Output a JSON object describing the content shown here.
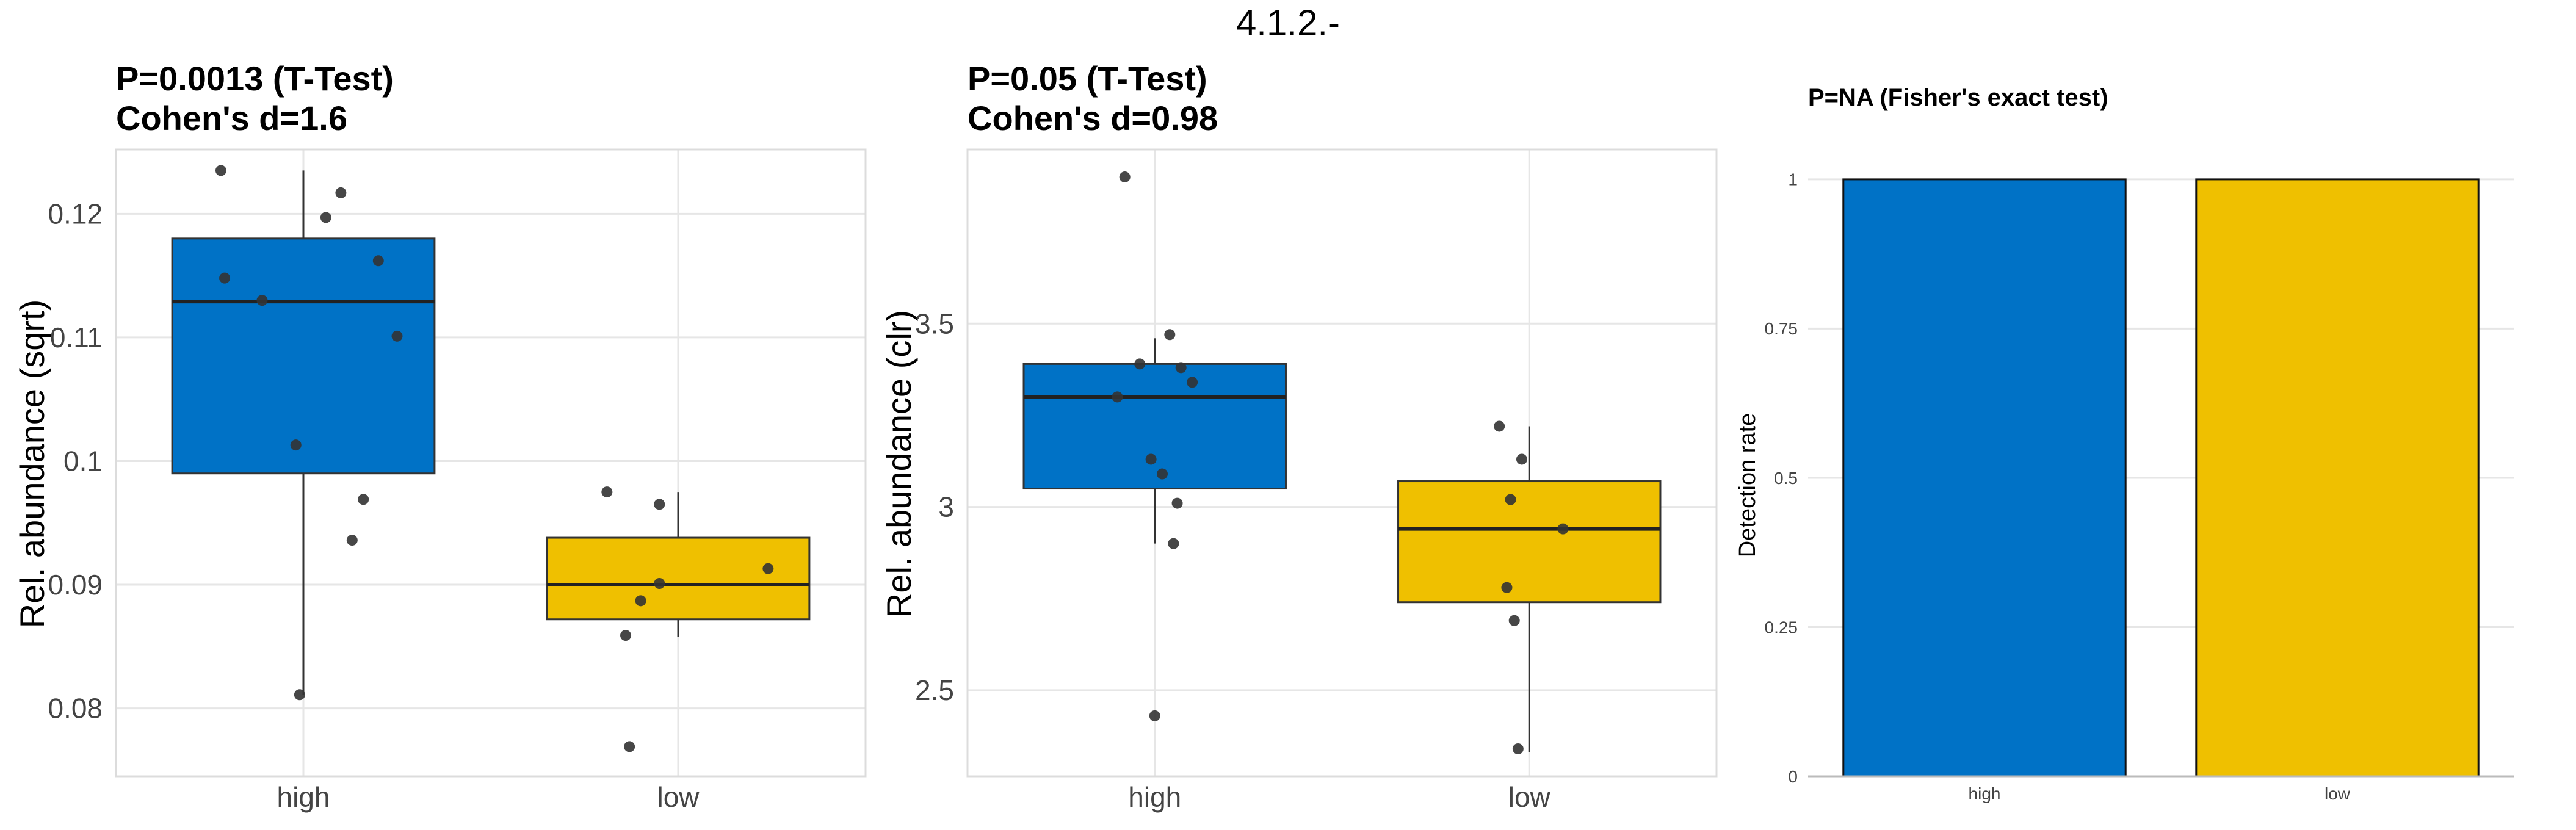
{
  "figure": {
    "title": "4.1.2.-"
  },
  "colors": {
    "high": "#0072C6",
    "low": "#EFC000",
    "point": "#333333",
    "grid": "#e6e6e6"
  },
  "chart_data": [
    {
      "type": "box",
      "title_line1": "P=0.0013 (T-Test)",
      "title_line2": "Cohen's d=1.6",
      "ylabel": "Rel. abundance (sqrt)",
      "xlabel": "",
      "categories": [
        "high",
        "low"
      ],
      "ylim": [
        0.0745,
        0.1252
      ],
      "yticks": [
        0.08,
        0.09,
        0.1,
        0.11,
        0.12
      ],
      "ytick_labels": [
        "0.08",
        "0.09",
        "0.1",
        "0.11",
        "0.12"
      ],
      "boxes": [
        {
          "group": "high",
          "q1": 0.099,
          "median": 0.1129,
          "q3": 0.118,
          "whisker_low": 0.0811,
          "whisker_high": 0.1235
        },
        {
          "group": "low",
          "q1": 0.0872,
          "median": 0.09,
          "q3": 0.0938,
          "whisker_low": 0.0858,
          "whisker_high": 0.0975
        }
      ],
      "points": [
        {
          "group": "high",
          "jitter": -0.22,
          "value": 0.1235
        },
        {
          "group": "high",
          "jitter": 0.1,
          "value": 0.1217
        },
        {
          "group": "high",
          "jitter": 0.06,
          "value": 0.1197
        },
        {
          "group": "high",
          "jitter": 0.2,
          "value": 0.1162
        },
        {
          "group": "high",
          "jitter": -0.21,
          "value": 0.1148
        },
        {
          "group": "high",
          "jitter": -0.11,
          "value": 0.113
        },
        {
          "group": "high",
          "jitter": 0.25,
          "value": 0.1101
        },
        {
          "group": "high",
          "jitter": -0.02,
          "value": 0.1013
        },
        {
          "group": "high",
          "jitter": 0.16,
          "value": 0.0969
        },
        {
          "group": "high",
          "jitter": 0.13,
          "value": 0.0936
        },
        {
          "group": "high",
          "jitter": -0.01,
          "value": 0.0811
        },
        {
          "group": "low",
          "jitter": -0.19,
          "value": 0.0975
        },
        {
          "group": "low",
          "jitter": -0.05,
          "value": 0.0965
        },
        {
          "group": "low",
          "jitter": 0.24,
          "value": 0.0913
        },
        {
          "group": "low",
          "jitter": -0.05,
          "value": 0.0901
        },
        {
          "group": "low",
          "jitter": -0.1,
          "value": 0.0887
        },
        {
          "group": "low",
          "jitter": -0.14,
          "value": 0.0859
        },
        {
          "group": "low",
          "jitter": -0.13,
          "value": 0.0769
        }
      ]
    },
    {
      "type": "box",
      "title_line1": "P=0.05 (T-Test)",
      "title_line2": "Cohen's d=0.98",
      "ylabel": "Rel. abundance (clr)",
      "xlabel": "",
      "categories": [
        "high",
        "low"
      ],
      "ylim": [
        2.265,
        3.975
      ],
      "yticks": [
        2.5,
        3,
        3.5
      ],
      "ytick_labels": [
        "2.5",
        "3",
        "3.5"
      ],
      "boxes": [
        {
          "group": "high",
          "q1": 3.05,
          "median": 3.3,
          "q3": 3.39,
          "whisker_low": 2.9,
          "whisker_high": 3.46
        },
        {
          "group": "low",
          "q1": 2.74,
          "median": 2.94,
          "q3": 3.07,
          "whisker_low": 2.33,
          "whisker_high": 3.22
        }
      ],
      "points": [
        {
          "group": "high",
          "jitter": -0.08,
          "value": 3.9
        },
        {
          "group": "high",
          "jitter": 0.04,
          "value": 3.47
        },
        {
          "group": "high",
          "jitter": -0.04,
          "value": 3.39
        },
        {
          "group": "high",
          "jitter": 0.07,
          "value": 3.38
        },
        {
          "group": "high",
          "jitter": 0.1,
          "value": 3.34
        },
        {
          "group": "high",
          "jitter": -0.1,
          "value": 3.3
        },
        {
          "group": "high",
          "jitter": -0.01,
          "value": 3.13
        },
        {
          "group": "high",
          "jitter": 0.02,
          "value": 3.09
        },
        {
          "group": "high",
          "jitter": 0.06,
          "value": 3.01
        },
        {
          "group": "high",
          "jitter": 0.05,
          "value": 2.9
        },
        {
          "group": "high",
          "jitter": 0.0,
          "value": 2.43
        },
        {
          "group": "low",
          "jitter": -0.08,
          "value": 3.22
        },
        {
          "group": "low",
          "jitter": -0.02,
          "value": 3.13
        },
        {
          "group": "low",
          "jitter": -0.05,
          "value": 3.02
        },
        {
          "group": "low",
          "jitter": 0.09,
          "value": 2.94
        },
        {
          "group": "low",
          "jitter": -0.06,
          "value": 2.78
        },
        {
          "group": "low",
          "jitter": -0.04,
          "value": 2.69
        },
        {
          "group": "low",
          "jitter": -0.03,
          "value": 2.34
        }
      ]
    },
    {
      "type": "bar",
      "title_line1": "P=NA (Fisher's exact test)",
      "ylabel": "Detection rate",
      "xlabel": "",
      "categories": [
        "high",
        "low"
      ],
      "values": [
        1,
        1
      ],
      "ylim": [
        0,
        1.05
      ],
      "yticks": [
        0,
        0.25,
        0.5,
        0.75,
        1
      ],
      "ytick_labels": [
        "0",
        "0.25",
        "0.5",
        "0.75",
        "1"
      ]
    }
  ]
}
